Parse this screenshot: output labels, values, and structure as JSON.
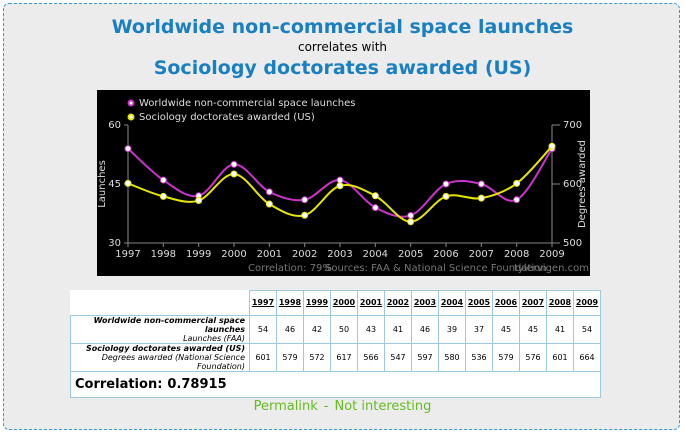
{
  "header": {
    "title": "Worldwide non-commercial space launches",
    "connector": "correlates with",
    "subtitle": "Sociology doctorates awarded (US)"
  },
  "chart_data": {
    "type": "line",
    "x": [
      1997,
      1998,
      1999,
      2000,
      2001,
      2002,
      2003,
      2004,
      2005,
      2006,
      2007,
      2008,
      2009
    ],
    "series": [
      {
        "name": "Worldwide non-commercial space launches",
        "color": "#cc33cc",
        "values": [
          54,
          46,
          42,
          50,
          43,
          41,
          46,
          39,
          37,
          45,
          45,
          41,
          54
        ]
      },
      {
        "name": "Sociology doctorates awarded (US)",
        "color": "#e6e600",
        "axis": "y2",
        "values": [
          601,
          579,
          572,
          617,
          566,
          547,
          597,
          580,
          536,
          579,
          576,
          601,
          664
        ]
      }
    ],
    "ylabel": "Launches",
    "y2label": "Degrees awarded",
    "xlim": [
      1997,
      2009
    ],
    "xticks": [
      1997,
      1998,
      1999,
      2000,
      2001,
      2002,
      2003,
      2004,
      2005,
      2006,
      2007,
      2008,
      2009
    ],
    "ylim": [
      30,
      60
    ],
    "yticks": [
      30,
      45,
      60
    ],
    "y2lim": [
      500,
      700
    ],
    "y2ticks": [
      500,
      600,
      700
    ],
    "annotations": [
      "Correlation: 79%",
      "Sources: FAA & National Science Foundation",
      "tylervigen.com"
    ]
  },
  "table": {
    "sublabels": [
      "Launches (FAA)",
      "Degrees awarded (National Science Foundation)"
    ],
    "correlation_label": "Correlation:",
    "correlation": 0.78915
  },
  "links": [
    "Permalink",
    "-",
    "Not interesting"
  ]
}
